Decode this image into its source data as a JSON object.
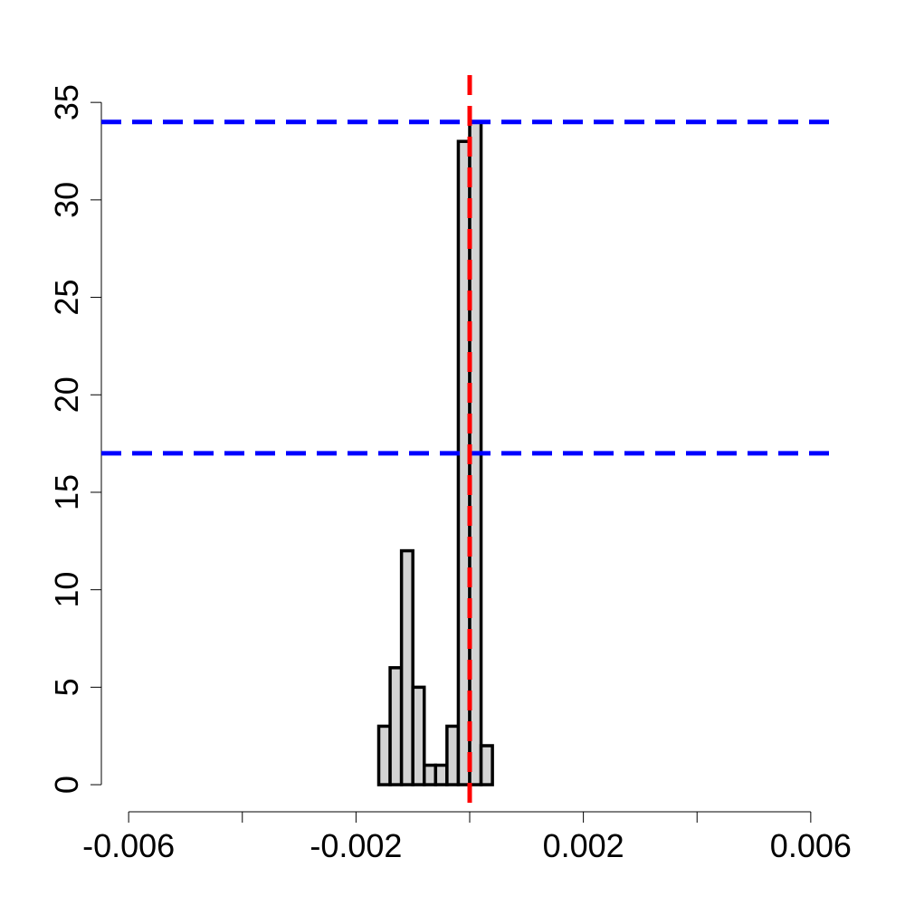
{
  "chart_data": {
    "type": "histogram",
    "bins": [
      -0.0016,
      -0.0014,
      -0.0012,
      -0.001,
      -0.0008,
      -0.0006,
      -0.0004,
      -0.0002,
      0,
      0.0002,
      0.0004
    ],
    "values": [
      3,
      6,
      12,
      5,
      1,
      1,
      3,
      33,
      34,
      2
    ],
    "color": "#d3d3d3",
    "xlim": [
      -0.00648,
      0.00648
    ],
    "ylim": [
      -1.39,
      36.4
    ],
    "xticks": [
      -0.006,
      {
        "value": -0.004,
        "label": null
      },
      -0.002,
      {
        "value": 0,
        "label": null
      },
      0.002,
      {
        "value": 0.004,
        "label": null
      },
      0.006
    ],
    "yticks": [
      0,
      5,
      10,
      15,
      20,
      25,
      30,
      35
    ],
    "hlines": [
      {
        "value": 34,
        "color": "#0000ff"
      },
      {
        "value": 17,
        "color": "#0000ff"
      }
    ],
    "vlines": [
      {
        "value": 0,
        "color": "#ff0000"
      }
    ]
  }
}
